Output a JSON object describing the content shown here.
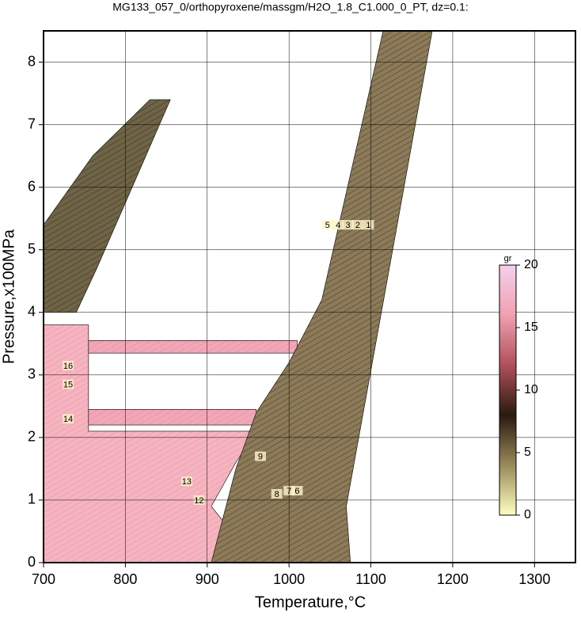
{
  "chart_data": {
    "type": "contour",
    "title": "MG133_057_0/orthopyroxene/massgm/H2O_1.8_C1.000_0_PT, dz=0.1:",
    "xlabel": "Temperature,°C",
    "ylabel": "Pressure,x100MPa",
    "xlim": [
      700,
      1350
    ],
    "xticks": [
      700,
      800,
      900,
      1000,
      1100,
      1200,
      1300
    ],
    "ylim": [
      0,
      8.5
    ],
    "yticks": [
      0,
      1,
      2,
      3,
      4,
      5,
      6,
      7,
      8
    ],
    "grid": true,
    "regions": [
      {
        "color": "#f7b3bf",
        "x": [
          700,
          960,
          905,
          935,
          960,
          755,
          755,
          700
        ],
        "y": [
          0,
          0,
          0.9,
          1.6,
          2.1,
          2.1,
          3.8,
          3.8
        ]
      },
      {
        "color": "#f3a7b6",
        "x": [
          755,
          960,
          960,
          755
        ],
        "y": [
          2.2,
          2.2,
          2.45,
          2.45
        ]
      },
      {
        "color": "#f3a7b6",
        "x": [
          755,
          1010,
          1010,
          755
        ],
        "y": [
          3.35,
          3.35,
          3.55,
          3.55
        ]
      },
      {
        "color": "#8c7a58",
        "x": [
          905,
          1075,
          1070,
          1175,
          1115,
          1040,
          1000,
          960,
          935
        ],
        "y": [
          0,
          0,
          0.9,
          8.5,
          8.5,
          4.2,
          3.2,
          2.4,
          1.5
        ]
      },
      {
        "color": "#6f6446",
        "x": [
          700,
          700,
          760,
          830,
          855,
          765,
          740
        ],
        "y": [
          4.0,
          5.4,
          6.5,
          7.4,
          7.4,
          4.7,
          4.0
        ]
      }
    ],
    "labels": [
      {
        "x": 1097,
        "y": 5.4,
        "value": 1
      },
      {
        "x": 1084,
        "y": 5.4,
        "value": 2
      },
      {
        "x": 1072,
        "y": 5.4,
        "value": 3
      },
      {
        "x": 1060,
        "y": 5.4,
        "value": 4
      },
      {
        "x": 1047,
        "y": 5.4,
        "value": 5
      },
      {
        "x": 890,
        "y": 1.0,
        "value": 12
      },
      {
        "x": 875,
        "y": 1.3,
        "value": 13
      },
      {
        "x": 730,
        "y": 2.3,
        "value": 14
      },
      {
        "x": 730,
        "y": 2.85,
        "value": 15
      },
      {
        "x": 730,
        "y": 3.15,
        "value": 16
      },
      {
        "x": 985,
        "y": 1.1,
        "value": 8
      },
      {
        "x": 1000,
        "y": 1.15,
        "value": 7
      },
      {
        "x": 1010,
        "y": 1.15,
        "value": 6
      },
      {
        "x": 965,
        "y": 1.7,
        "value": 9
      }
    ],
    "colorbar": {
      "label": "gr",
      "lim": [
        0,
        20
      ],
      "ticks": [
        0,
        5,
        10,
        15,
        20
      ],
      "colors": [
        "#ffffc0",
        "#9a8a5a",
        "#2a1a10",
        "#b0505a",
        "#f0a0b0",
        "#f4d0ec"
      ]
    }
  }
}
